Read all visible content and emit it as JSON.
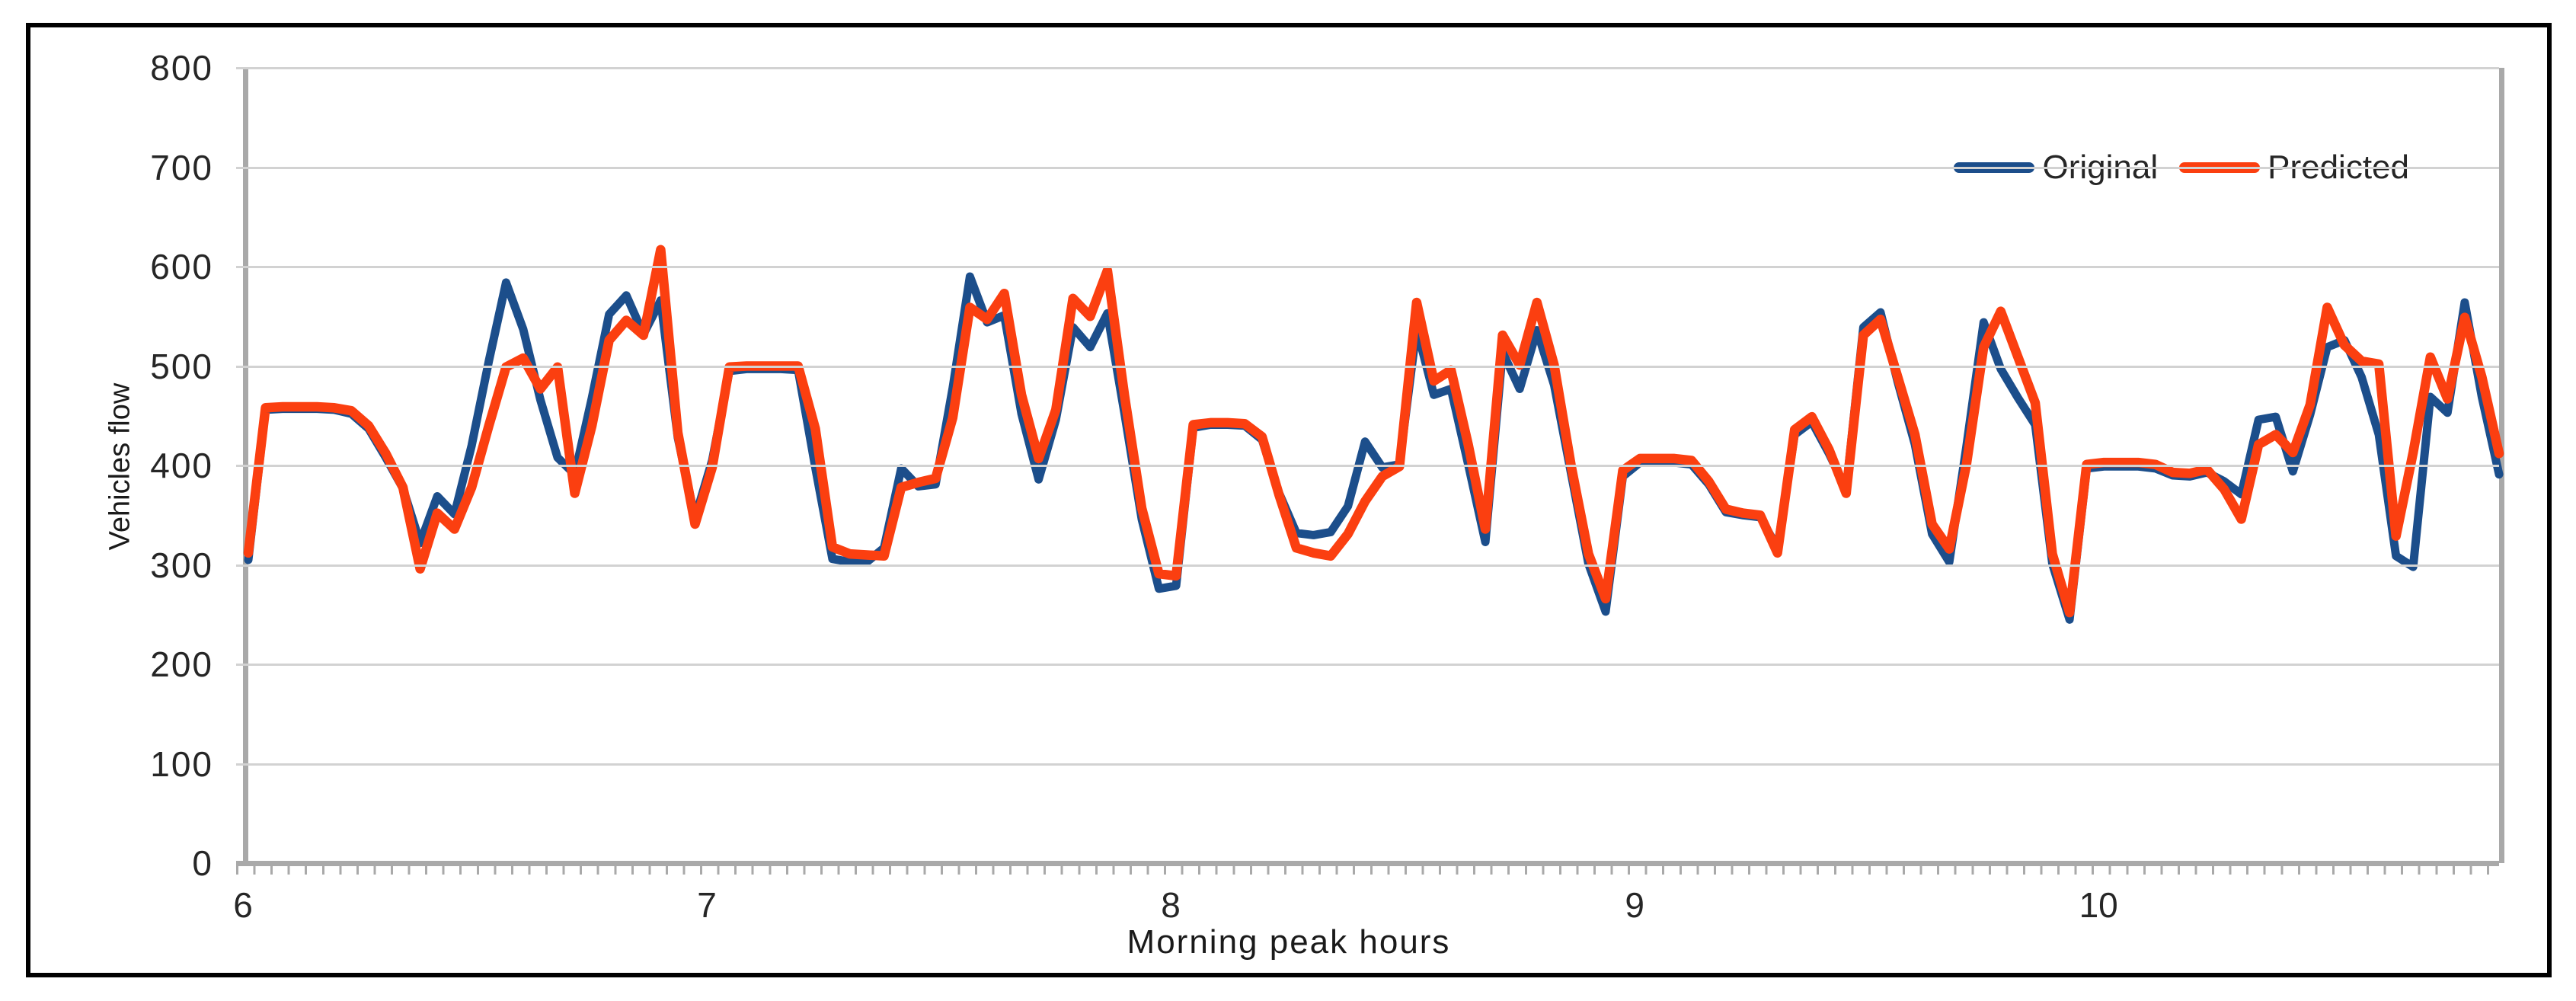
{
  "figure": {
    "background": "#ffffff",
    "border_color": "#000000"
  },
  "colors": {
    "original_line": "#1c4e8b",
    "predicted_line": "#fb3f10",
    "gridline": "#d2d2d2",
    "axis_line": "#a9a9a9",
    "text": "#262626"
  },
  "chart_data": {
    "type": "line",
    "title": "",
    "xlabel": "Morning peak hours",
    "ylabel": "Vehicles flow",
    "ylim": [
      0,
      800
    ],
    "y_ticks": [
      0,
      100,
      200,
      300,
      400,
      500,
      600,
      700,
      800
    ],
    "x_ticks": [
      6,
      7,
      8,
      9,
      10
    ],
    "x_start_hour": 6,
    "points_per_hour": 27,
    "grid": "horizontal",
    "legend_position": "top-right",
    "series": [
      {
        "name": "Original",
        "color": "#1c4e8b",
        "values": [
          305,
          456,
          457,
          457,
          457,
          456,
          452,
          437,
          408,
          377,
          322,
          369,
          351,
          420,
          505,
          584,
          537,
          466,
          408,
          391,
          468,
          552,
          571,
          532,
          566,
          428,
          347,
          405,
          495,
          497,
          497,
          497,
          496,
          398,
          306,
          303,
          303,
          317,
          397,
          379,
          381,
          478,
          590,
          544,
          551,
          452,
          386,
          446,
          539,
          519,
          553,
          452,
          346,
          276,
          279,
          438,
          441,
          441,
          440,
          426,
          372,
          332,
          330,
          333,
          359,
          424,
          398,
          401,
          538,
          471,
          477,
          401,
          323,
          514,
          477,
          536,
          481,
          391,
          301,
          253,
          389,
          403,
          403,
          403,
          401,
          381,
          353,
          350,
          348,
          317,
          431,
          444,
          412,
          376,
          539,
          554,
          484,
          421,
          331,
          303,
          419,
          544,
          497,
          468,
          441,
          301,
          245,
          397,
          399,
          399,
          399,
          397,
          390,
          389,
          393,
          384,
          371,
          446,
          449,
          394,
          451,
          519,
          526,
          489,
          431,
          309,
          298,
          469,
          453,
          564,
          469,
          391
        ]
      },
      {
        "name": "Predicted",
        "color": "#fb3f10",
        "values": [
          312,
          458,
          459,
          459,
          459,
          458,
          455,
          440,
          412,
          378,
          296,
          352,
          336,
          378,
          440,
          499,
          508,
          477,
          499,
          372,
          440,
          526,
          546,
          531,
          617,
          433,
          341,
          398,
          499,
          500,
          500,
          500,
          500,
          437,
          318,
          311,
          310,
          309,
          378,
          383,
          387,
          448,
          559,
          547,
          573,
          471,
          407,
          456,
          568,
          550,
          596,
          470,
          357,
          291,
          289,
          441,
          443,
          443,
          442,
          429,
          370,
          317,
          312,
          309,
          331,
          364,
          389,
          399,
          564,
          485,
          496,
          421,
          336,
          531,
          501,
          564,
          501,
          399,
          311,
          266,
          395,
          407,
          407,
          407,
          405,
          384,
          356,
          352,
          350,
          312,
          436,
          449,
          416,
          372,
          531,
          547,
          489,
          431,
          341,
          316,
          401,
          519,
          555,
          509,
          463,
          311,
          252,
          401,
          403,
          403,
          403,
          401,
          393,
          392,
          396,
          376,
          346,
          421,
          431,
          413,
          461,
          559,
          521,
          505,
          502,
          329,
          413,
          509,
          467,
          549,
          489,
          412
        ]
      }
    ]
  }
}
